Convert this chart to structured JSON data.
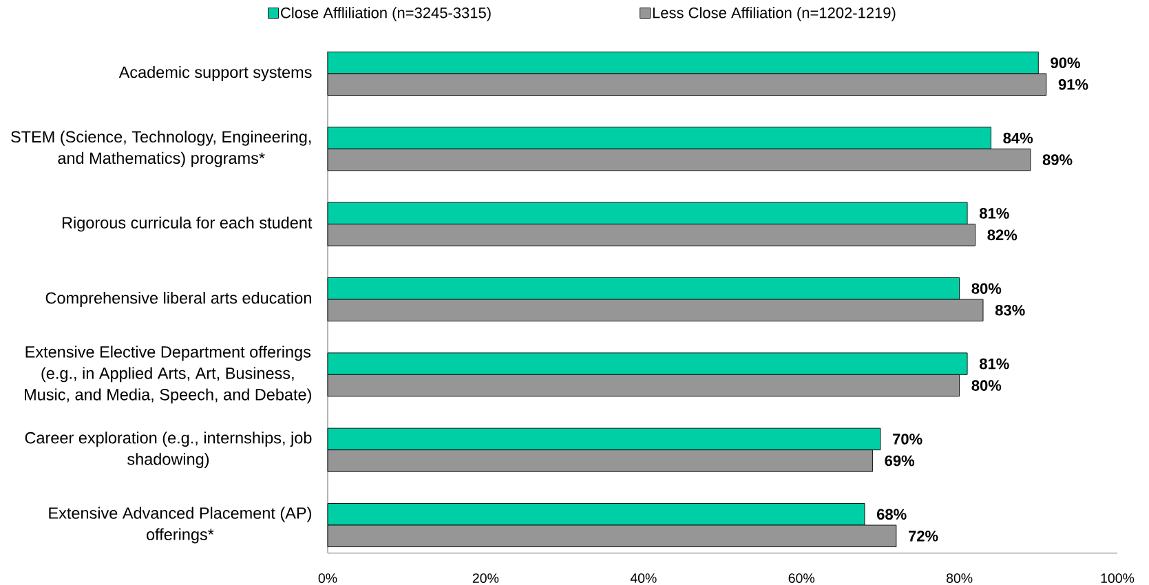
{
  "chart_data": {
    "type": "bar",
    "orientation": "horizontal",
    "categories": [
      "Academic support systems",
      "STEM (Science, Technology, Engineering, and Mathematics) programs*",
      "Rigorous curricula for each student",
      "Comprehensive liberal arts education",
      "Extensive Elective Department offerings (e.g., in Applied Arts, Art, Business, Music, and Media, Speech, and Debate)",
      "Career exploration (e.g., internships, job shadowing)",
      "Extensive Advanced Placement (AP) offerings*"
    ],
    "series": [
      {
        "name": "Close Affliliation (n=3245-3315)",
        "color": "#00cfa5",
        "values": [
          90,
          84,
          81,
          80,
          81,
          70,
          68
        ],
        "value_labels": [
          "90%",
          "84%",
          "81%",
          "80%",
          "81%",
          "70%",
          "68%"
        ]
      },
      {
        "name": "Less Close Affiliation (n=1202-1219)",
        "color": "#969696",
        "values": [
          91,
          89,
          82,
          83,
          80,
          69,
          72
        ],
        "value_labels": [
          "91%",
          "89%",
          "82%",
          "83%",
          "80%",
          "69%",
          "72%"
        ]
      }
    ],
    "xlim": [
      0,
      100
    ],
    "xticks": [
      {
        "value": 0,
        "label": "0%"
      },
      {
        "value": 20,
        "label": "20%"
      },
      {
        "value": 40,
        "label": "40%"
      },
      {
        "value": 60,
        "label": "60%"
      },
      {
        "value": 80,
        "label": "80%"
      },
      {
        "value": 100,
        "label": "100%"
      }
    ],
    "legend": "top"
  }
}
